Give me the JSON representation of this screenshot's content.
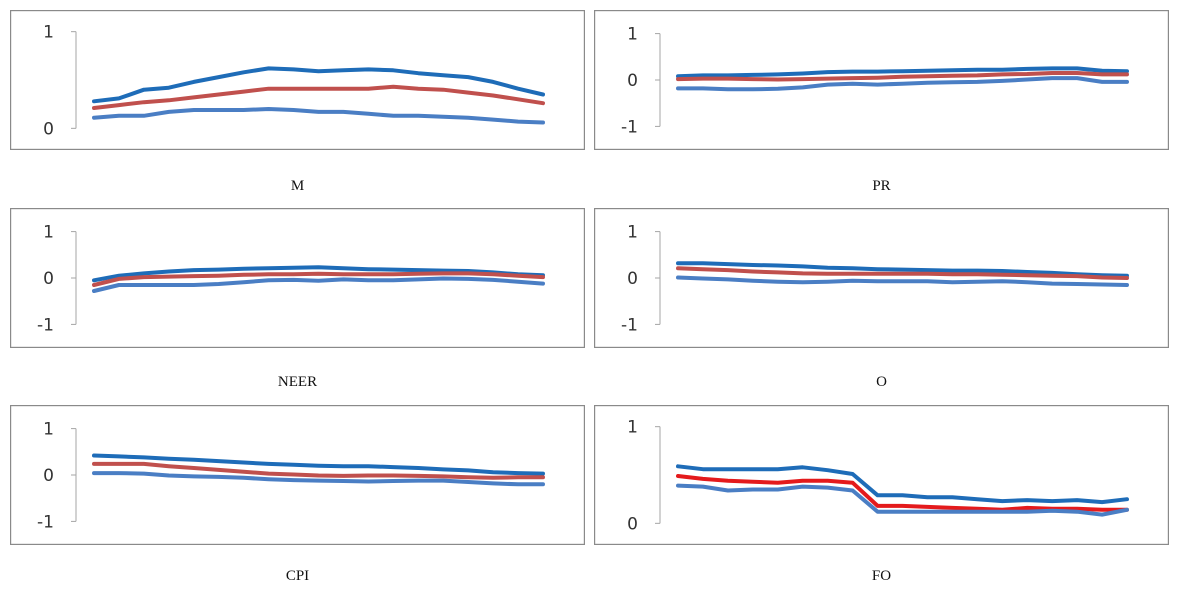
{
  "colors": {
    "upper": "#1e6cb8",
    "median": "#c0504d",
    "lower": "#4a7ec4",
    "median_bright": "#e41a1c"
  },
  "chart_data": [
    {
      "type": "line",
      "title": "M",
      "ylim": [
        -0.1,
        1.1
      ],
      "yticks": [
        "0",
        "1"
      ],
      "ytick_values": [
        0,
        1
      ],
      "grid": false,
      "series": [
        {
          "role": "upper",
          "values": [
            0.28,
            0.31,
            0.4,
            0.42,
            0.48,
            0.53,
            0.58,
            0.62,
            0.61,
            0.59,
            0.6,
            0.61,
            0.6,
            0.57,
            0.55,
            0.53,
            0.48,
            0.41,
            0.35
          ]
        },
        {
          "role": "median",
          "values": [
            0.21,
            0.24,
            0.27,
            0.29,
            0.32,
            0.35,
            0.38,
            0.41,
            0.41,
            0.41,
            0.41,
            0.41,
            0.43,
            0.41,
            0.4,
            0.37,
            0.34,
            0.3,
            0.26
          ]
        },
        {
          "role": "lower",
          "values": [
            0.11,
            0.13,
            0.13,
            0.17,
            0.19,
            0.19,
            0.19,
            0.2,
            0.19,
            0.17,
            0.17,
            0.15,
            0.13,
            0.13,
            0.12,
            0.11,
            0.09,
            0.07,
            0.06
          ]
        }
      ]
    },
    {
      "type": "line",
      "title": "PR",
      "ylim": [
        -1.25,
        1.25
      ],
      "yticks": [
        "1",
        "0",
        "-1"
      ],
      "ytick_values": [
        1,
        0,
        -1
      ],
      "grid": false,
      "series": [
        {
          "role": "upper",
          "values": [
            0.08,
            0.1,
            0.1,
            0.11,
            0.12,
            0.14,
            0.17,
            0.18,
            0.18,
            0.19,
            0.2,
            0.21,
            0.22,
            0.22,
            0.24,
            0.25,
            0.25,
            0.2,
            0.19
          ]
        },
        {
          "role": "median",
          "values": [
            0.02,
            0.03,
            0.03,
            0.02,
            0.01,
            0.02,
            0.03,
            0.04,
            0.05,
            0.07,
            0.08,
            0.09,
            0.1,
            0.12,
            0.13,
            0.15,
            0.15,
            0.12,
            0.12
          ]
        },
        {
          "role": "lower",
          "values": [
            -0.18,
            -0.18,
            -0.2,
            -0.2,
            -0.19,
            -0.16,
            -0.1,
            -0.08,
            -0.1,
            -0.08,
            -0.06,
            -0.05,
            -0.04,
            -0.02,
            0.01,
            0.04,
            0.04,
            -0.04,
            -0.04
          ]
        }
      ]
    },
    {
      "type": "line",
      "title": "NEER",
      "ylim": [
        -1.25,
        1.25
      ],
      "yticks": [
        "1",
        "0",
        "-1"
      ],
      "ytick_values": [
        1,
        0,
        -1
      ],
      "grid": false,
      "series": [
        {
          "role": "upper",
          "values": [
            -0.05,
            0.05,
            0.1,
            0.14,
            0.17,
            0.18,
            0.2,
            0.21,
            0.22,
            0.23,
            0.21,
            0.19,
            0.18,
            0.17,
            0.16,
            0.15,
            0.12,
            0.08,
            0.06
          ]
        },
        {
          "role": "median",
          "values": [
            -0.15,
            -0.02,
            0.02,
            0.03,
            0.04,
            0.05,
            0.07,
            0.08,
            0.08,
            0.09,
            0.08,
            0.08,
            0.08,
            0.09,
            0.1,
            0.1,
            0.08,
            0.05,
            0.02
          ]
        },
        {
          "role": "lower",
          "values": [
            -0.28,
            -0.15,
            -0.15,
            -0.15,
            -0.15,
            -0.13,
            -0.09,
            -0.05,
            -0.04,
            -0.06,
            -0.03,
            -0.05,
            -0.05,
            -0.03,
            -0.01,
            -0.02,
            -0.04,
            -0.08,
            -0.12
          ]
        }
      ]
    },
    {
      "type": "line",
      "title": "O",
      "ylim": [
        -1.25,
        1.25
      ],
      "yticks": [
        "1",
        "0",
        "-1"
      ],
      "ytick_values": [
        1,
        0,
        -1
      ],
      "grid": false,
      "series": [
        {
          "role": "upper",
          "values": [
            0.32,
            0.32,
            0.3,
            0.28,
            0.27,
            0.25,
            0.22,
            0.21,
            0.19,
            0.18,
            0.17,
            0.16,
            0.16,
            0.15,
            0.13,
            0.11,
            0.08,
            0.06,
            0.05
          ]
        },
        {
          "role": "median",
          "values": [
            0.21,
            0.19,
            0.17,
            0.14,
            0.12,
            0.1,
            0.09,
            0.09,
            0.09,
            0.09,
            0.09,
            0.08,
            0.08,
            0.07,
            0.06,
            0.05,
            0.04,
            0.01,
            0.0
          ]
        },
        {
          "role": "lower",
          "values": [
            0.01,
            -0.01,
            -0.03,
            -0.06,
            -0.08,
            -0.09,
            -0.08,
            -0.06,
            -0.07,
            -0.07,
            -0.07,
            -0.09,
            -0.08,
            -0.07,
            -0.09,
            -0.12,
            -0.13,
            -0.14,
            -0.15
          ]
        }
      ]
    },
    {
      "type": "line",
      "title": "CPI",
      "ylim": [
        -1.25,
        1.25
      ],
      "yticks": [
        "1",
        "0",
        "-1"
      ],
      "ytick_values": [
        1,
        0,
        -1
      ],
      "grid": false,
      "series": [
        {
          "role": "upper",
          "values": [
            0.42,
            0.4,
            0.38,
            0.35,
            0.33,
            0.3,
            0.27,
            0.24,
            0.22,
            0.2,
            0.19,
            0.19,
            0.17,
            0.15,
            0.12,
            0.1,
            0.06,
            0.04,
            0.03
          ]
        },
        {
          "role": "median",
          "values": [
            0.24,
            0.24,
            0.24,
            0.19,
            0.15,
            0.11,
            0.07,
            0.03,
            0.01,
            -0.01,
            -0.02,
            -0.01,
            -0.01,
            -0.02,
            -0.03,
            -0.05,
            -0.06,
            -0.05,
            -0.05
          ]
        },
        {
          "role": "lower",
          "values": [
            0.04,
            0.04,
            0.03,
            -0.01,
            -0.03,
            -0.04,
            -0.06,
            -0.09,
            -0.11,
            -0.12,
            -0.13,
            -0.14,
            -0.13,
            -0.12,
            -0.12,
            -0.15,
            -0.18,
            -0.2,
            -0.2
          ]
        }
      ]
    },
    {
      "type": "line",
      "title": "FO",
      "ylim": [
        -0.1,
        1.1
      ],
      "yticks": [
        "1",
        "0"
      ],
      "ytick_values": [
        1,
        0
      ],
      "grid": false,
      "series": [
        {
          "role": "upper",
          "values": [
            0.59,
            0.56,
            0.56,
            0.56,
            0.56,
            0.58,
            0.55,
            0.51,
            0.29,
            0.29,
            0.27,
            0.27,
            0.25,
            0.23,
            0.24,
            0.23,
            0.24,
            0.22,
            0.25
          ]
        },
        {
          "role": "median",
          "values": [
            0.49,
            0.46,
            0.44,
            0.43,
            0.42,
            0.44,
            0.44,
            0.42,
            0.18,
            0.18,
            0.17,
            0.16,
            0.15,
            0.14,
            0.16,
            0.15,
            0.15,
            0.14,
            0.14
          ]
        },
        {
          "role": "lower",
          "values": [
            0.39,
            0.38,
            0.34,
            0.35,
            0.35,
            0.38,
            0.37,
            0.34,
            0.12,
            0.12,
            0.12,
            0.12,
            0.12,
            0.12,
            0.12,
            0.13,
            0.12,
            0.09,
            0.14
          ]
        }
      ]
    }
  ]
}
